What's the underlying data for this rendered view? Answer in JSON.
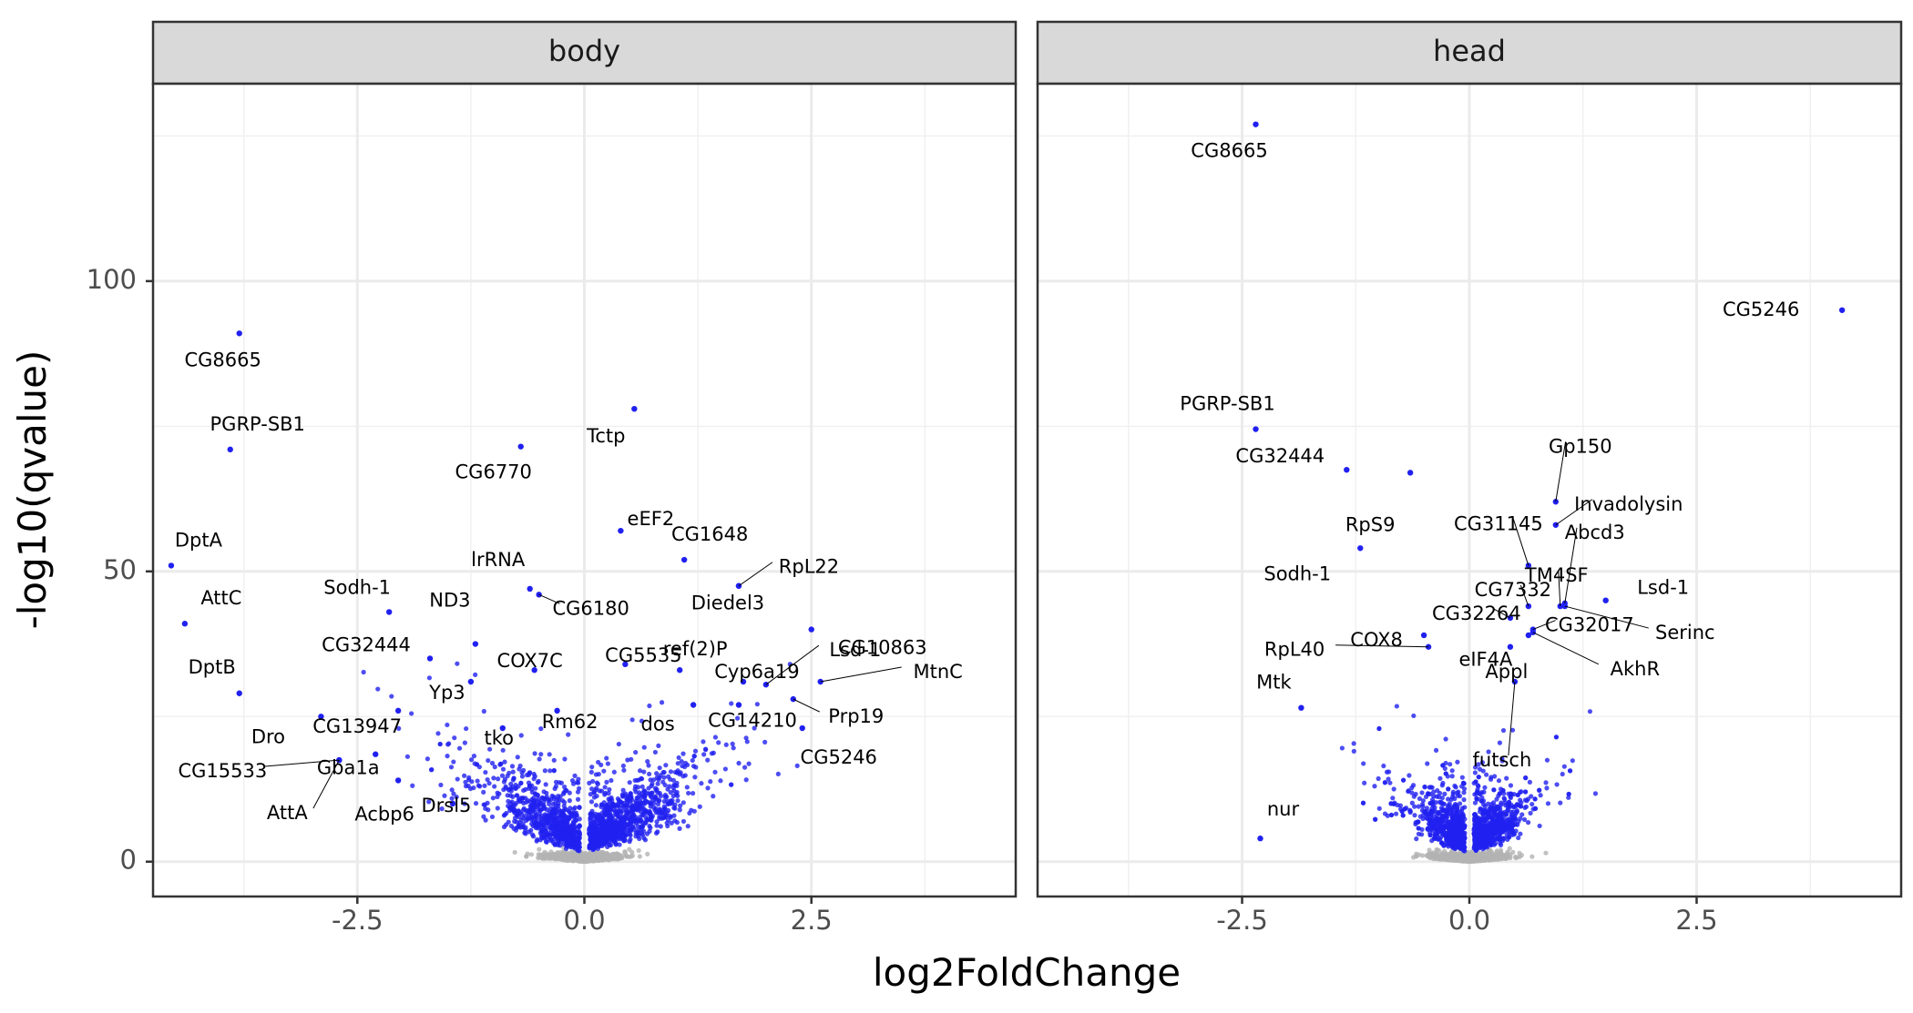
{
  "chart_data": {
    "type": "scatter",
    "xlabel": "log2FoldChange",
    "ylabel": "-log10(qvalue)",
    "xlim": [
      -4.75,
      4.75
    ],
    "ylim": [
      -6,
      134
    ],
    "xticks": [
      -2.5,
      0.0,
      2.5
    ],
    "xtick_labels": [
      "-2.5",
      "0.0",
      "2.5"
    ],
    "yticks": [
      0,
      50,
      100
    ],
    "ytick_labels": [
      "0",
      "50",
      "100"
    ],
    "grid": true,
    "significant_color": "#2020f0",
    "nonsignificant_color": "#b3b3b3",
    "panels": [
      {
        "name": "body",
        "labeled_points": [
          {
            "gene": "CG8665",
            "x": -3.8,
            "y": 91
          },
          {
            "gene": "PGRP-SB1",
            "x": -3.9,
            "y": 71
          },
          {
            "gene": "DptA",
            "x": -4.55,
            "y": 51
          },
          {
            "gene": "AttC",
            "x": -4.4,
            "y": 41
          },
          {
            "gene": "DptB",
            "x": -3.8,
            "y": 29
          },
          {
            "gene": "Dro",
            "x": -2.9,
            "y": 25
          },
          {
            "gene": "Sodh-1",
            "x": -2.15,
            "y": 43
          },
          {
            "gene": "CG32444",
            "x": -1.7,
            "y": 35
          },
          {
            "gene": "CG13947",
            "x": -2.05,
            "y": 26
          },
          {
            "gene": "Gba1a",
            "x": -2.3,
            "y": 18.5
          },
          {
            "gene": "CG15533",
            "x": -2.7,
            "y": 17.5
          },
          {
            "gene": "AttA",
            "x": -2.7,
            "y": 17.5
          },
          {
            "gene": "Acbp6",
            "x": -2.05,
            "y": 14
          },
          {
            "gene": "Drsl5",
            "x": -1.45,
            "y": 10
          },
          {
            "gene": "tko",
            "x": -0.9,
            "y": 23
          },
          {
            "gene": "Yp3",
            "x": -1.25,
            "y": 31
          },
          {
            "gene": "ND3",
            "x": -1.2,
            "y": 37.5
          },
          {
            "gene": "lrRNA",
            "x": -0.6,
            "y": 47
          },
          {
            "gene": "CG6770",
            "x": -0.7,
            "y": 71.5
          },
          {
            "gene": "CG6180",
            "x": -0.5,
            "y": 46
          },
          {
            "gene": "COX7C",
            "x": -0.55,
            "y": 33
          },
          {
            "gene": "Rm62",
            "x": -0.3,
            "y": 26
          },
          {
            "gene": "Tctp",
            "x": 0.55,
            "y": 78
          },
          {
            "gene": "eEF2",
            "x": 0.4,
            "y": 57
          },
          {
            "gene": "CG5535",
            "x": 0.45,
            "y": 34
          },
          {
            "gene": "CG1648",
            "x": 1.1,
            "y": 52
          },
          {
            "gene": "ref(2)P",
            "x": 1.05,
            "y": 33
          },
          {
            "gene": "Diedel3",
            "x": 1.7,
            "y": 47.5
          },
          {
            "gene": "RpL22",
            "x": 1.7,
            "y": 47.5
          },
          {
            "gene": "CG10863",
            "x": 2.5,
            "y": 40
          },
          {
            "gene": "Cyp6a19",
            "x": 1.75,
            "y": 31
          },
          {
            "gene": "Lsd-1",
            "x": 2.0,
            "y": 30.5
          },
          {
            "gene": "MtnC",
            "x": 2.6,
            "y": 31
          },
          {
            "gene": "Prp19",
            "x": 2.3,
            "y": 28
          },
          {
            "gene": "dos",
            "x": 1.2,
            "y": 27
          },
          {
            "gene": "CG14210",
            "x": 1.7,
            "y": 27
          },
          {
            "gene": "CG5246",
            "x": 2.4,
            "y": 23
          }
        ]
      },
      {
        "name": "head",
        "labeled_points": [
          {
            "gene": "CG8665",
            "x": -2.35,
            "y": 127
          },
          {
            "gene": "CG5246",
            "x": 4.1,
            "y": 95
          },
          {
            "gene": "PGRP-SB1",
            "x": -2.35,
            "y": 74.5
          },
          {
            "gene": "CG32444",
            "x": -1.35,
            "y": 67.5
          },
          {
            "gene": "RpS9",
            "x": -0.65,
            "y": 67
          },
          {
            "gene": "Sodh-1",
            "x": -1.2,
            "y": 54
          },
          {
            "gene": "COX8",
            "x": -0.5,
            "y": 39
          },
          {
            "gene": "RpL40",
            "x": -0.45,
            "y": 37
          },
          {
            "gene": "Mtk",
            "x": -1.85,
            "y": 26.5
          },
          {
            "gene": "nur",
            "x": -2.3,
            "y": 4
          },
          {
            "gene": "Gp150",
            "x": 0.95,
            "y": 62
          },
          {
            "gene": "Invadolysin",
            "x": 0.95,
            "y": 58
          },
          {
            "gene": "CG31145",
            "x": 0.65,
            "y": 51
          },
          {
            "gene": "Abcd3",
            "x": 1.05,
            "y": 44.5
          },
          {
            "gene": "CG7332",
            "x": 0.65,
            "y": 44
          },
          {
            "gene": "TM4SF",
            "x": 1.0,
            "y": 44
          },
          {
            "gene": "Lsd-1",
            "x": 1.5,
            "y": 45
          },
          {
            "gene": "CG32264",
            "x": 0.45,
            "y": 42
          },
          {
            "gene": "eIF4A",
            "x": 0.45,
            "y": 37
          },
          {
            "gene": "Serinc",
            "x": 1.05,
            "y": 44
          },
          {
            "gene": "CG32017",
            "x": 0.7,
            "y": 40
          },
          {
            "gene": "Appl",
            "x": 0.65,
            "y": 39
          },
          {
            "gene": "AkhR",
            "x": 0.7,
            "y": 39.5
          },
          {
            "gene": "futsch",
            "x": 0.5,
            "y": 31
          }
        ]
      }
    ]
  }
}
